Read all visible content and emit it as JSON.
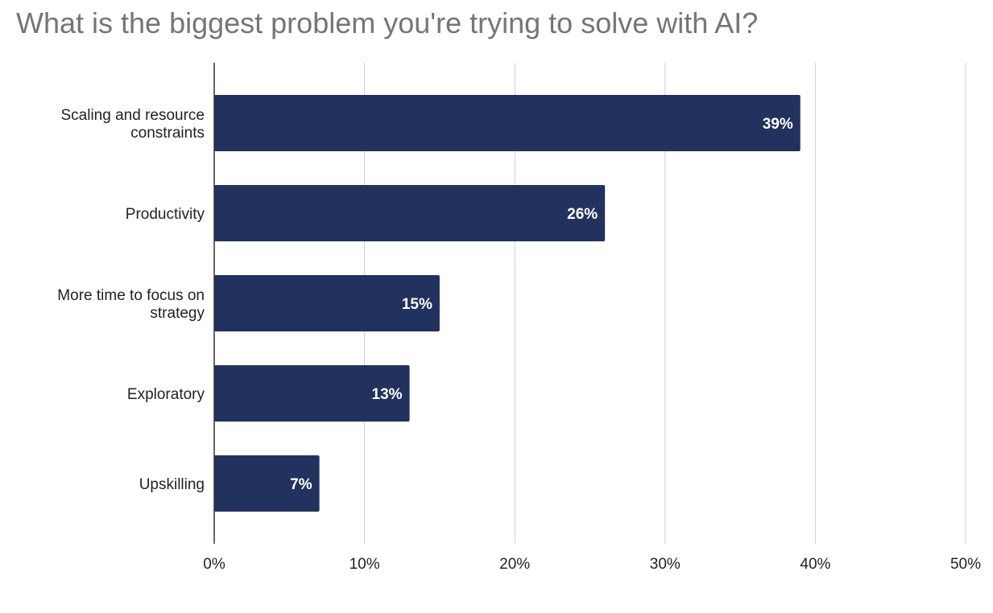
{
  "chart_data": {
    "type": "bar",
    "orientation": "horizontal",
    "title": "What is the biggest problem you're trying to solve with AI?",
    "categories": [
      [
        "Scaling and resource",
        "constraints"
      ],
      [
        "Productivity"
      ],
      [
        "More time to focus on",
        "strategy"
      ],
      [
        "Exploratory"
      ],
      [
        "Upskilling"
      ]
    ],
    "values": [
      39,
      26,
      15,
      13,
      7
    ],
    "data_labels": [
      "39%",
      "26%",
      "15%",
      "13%",
      "7%"
    ],
    "xlim": [
      0,
      50
    ],
    "x_ticks": [
      0,
      10,
      20,
      30,
      40,
      50
    ],
    "x_tick_labels": [
      "0%",
      "10%",
      "20%",
      "30%",
      "40%",
      "50%"
    ],
    "grid": true,
    "legend": "none",
    "colors": {
      "bar": "#22325e",
      "grid": "#cccccc",
      "axis": "#333333",
      "title": "#757575",
      "label": "#222222",
      "data_label": "#ffffff"
    }
  }
}
